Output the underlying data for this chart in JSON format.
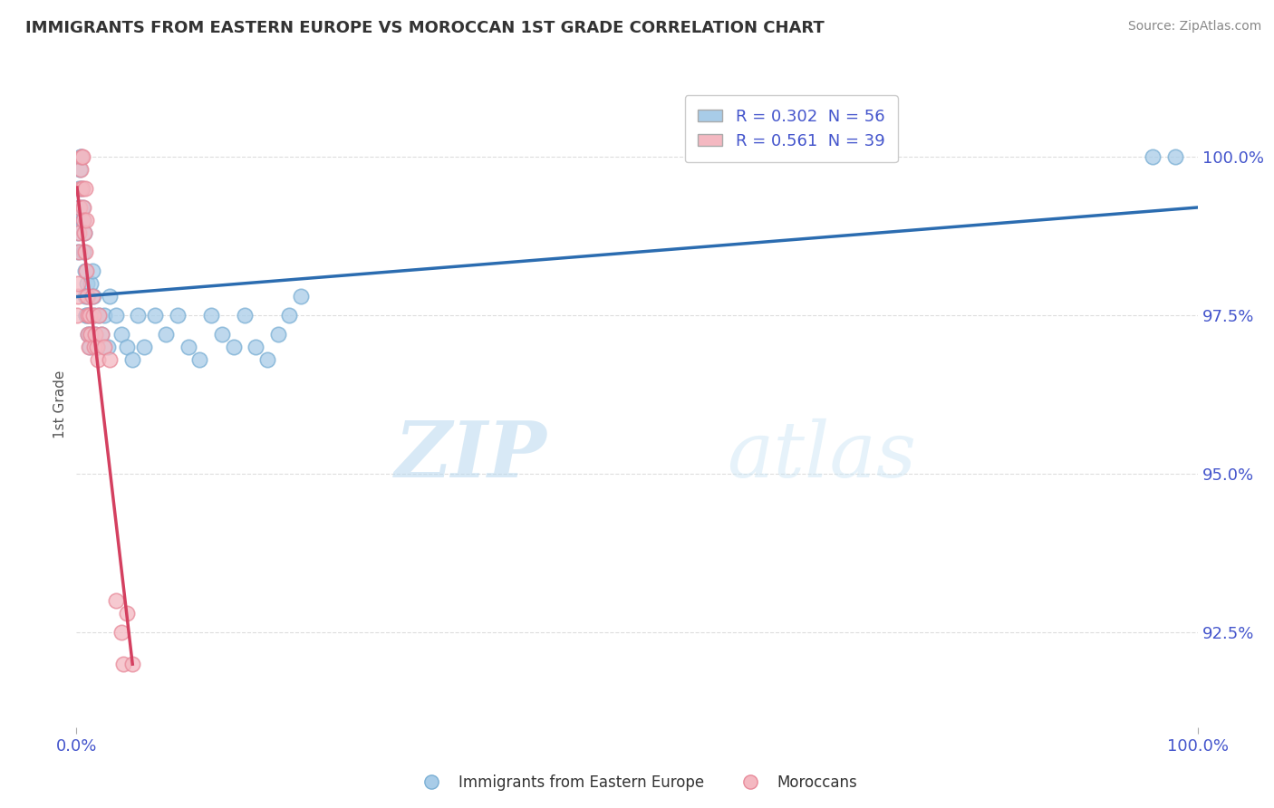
{
  "title": "IMMIGRANTS FROM EASTERN EUROPE VS MOROCCAN 1ST GRADE CORRELATION CHART",
  "source": "Source: ZipAtlas.com",
  "ylabel": "1st Grade",
  "xlim": [
    0.0,
    100.0
  ],
  "ylim": [
    91.0,
    101.2
  ],
  "yticks": [
    92.5,
    95.0,
    97.5,
    100.0
  ],
  "ytick_labels": [
    "92.5%",
    "95.0%",
    "97.5%",
    "100.0%"
  ],
  "xtick_labels": [
    "0.0%",
    "100.0%"
  ],
  "blue_R": 0.302,
  "blue_N": 56,
  "pink_R": 0.561,
  "pink_N": 39,
  "blue_color": "#a8cce8",
  "pink_color": "#f4b8c1",
  "blue_edge_color": "#7aafd4",
  "pink_edge_color": "#e88a9a",
  "blue_line_color": "#2b6cb0",
  "pink_line_color": "#d44060",
  "legend_blue_label": "Immigrants from Eastern Europe",
  "legend_pink_label": "Moroccans",
  "watermark_zip": "ZIP",
  "watermark_atlas": "atlas",
  "background_color": "#ffffff",
  "title_color": "#333333",
  "axis_label_color": "#4455cc",
  "grid_color": "#dddddd",
  "blue_x": [
    0.1,
    0.15,
    0.2,
    0.25,
    0.3,
    0.35,
    0.4,
    0.45,
    0.5,
    0.55,
    0.6,
    0.65,
    0.7,
    0.75,
    0.8,
    0.85,
    0.9,
    0.95,
    1.0,
    1.05,
    1.1,
    1.15,
    1.2,
    1.3,
    1.4,
    1.5,
    1.6,
    1.7,
    1.8,
    2.0,
    2.2,
    2.5,
    2.8,
    3.0,
    3.5,
    4.0,
    4.5,
    5.0,
    5.5,
    6.0,
    7.0,
    8.0,
    9.0,
    10.0,
    11.0,
    12.0,
    13.0,
    14.0,
    15.0,
    16.0,
    17.0,
    18.0,
    19.0,
    20.0,
    96.0,
    98.0
  ],
  "blue_y": [
    98.5,
    98.8,
    99.2,
    99.5,
    99.8,
    100.0,
    100.0,
    99.5,
    99.0,
    99.2,
    99.0,
    98.5,
    98.8,
    98.2,
    97.8,
    97.5,
    97.5,
    98.0,
    97.8,
    97.2,
    97.5,
    97.0,
    97.2,
    98.0,
    98.2,
    97.8,
    97.5,
    97.2,
    97.0,
    97.5,
    97.2,
    97.5,
    97.0,
    97.8,
    97.5,
    97.2,
    97.0,
    96.8,
    97.5,
    97.0,
    97.5,
    97.2,
    97.5,
    97.0,
    96.8,
    97.5,
    97.2,
    97.0,
    97.5,
    97.0,
    96.8,
    97.2,
    97.5,
    97.8,
    100.0,
    100.0
  ],
  "pink_x": [
    0.05,
    0.1,
    0.15,
    0.2,
    0.25,
    0.3,
    0.35,
    0.4,
    0.45,
    0.5,
    0.55,
    0.6,
    0.65,
    0.7,
    0.75,
    0.8,
    0.85,
    0.9,
    0.95,
    1.0,
    1.05,
    1.1,
    1.2,
    1.3,
    1.4,
    1.5,
    1.6,
    1.7,
    1.8,
    1.9,
    2.0,
    2.2,
    2.5,
    3.0,
    3.5,
    4.0,
    4.2,
    4.5,
    5.0
  ],
  "pink_y": [
    97.5,
    97.8,
    98.0,
    98.5,
    98.8,
    99.2,
    99.5,
    99.8,
    100.0,
    100.0,
    99.5,
    99.2,
    99.0,
    98.8,
    99.5,
    98.5,
    99.0,
    98.2,
    97.8,
    97.5,
    97.2,
    97.0,
    97.5,
    97.2,
    97.8,
    97.5,
    97.0,
    97.2,
    97.0,
    96.8,
    97.5,
    97.2,
    97.0,
    96.8,
    93.0,
    92.5,
    92.0,
    92.8,
    92.0
  ]
}
